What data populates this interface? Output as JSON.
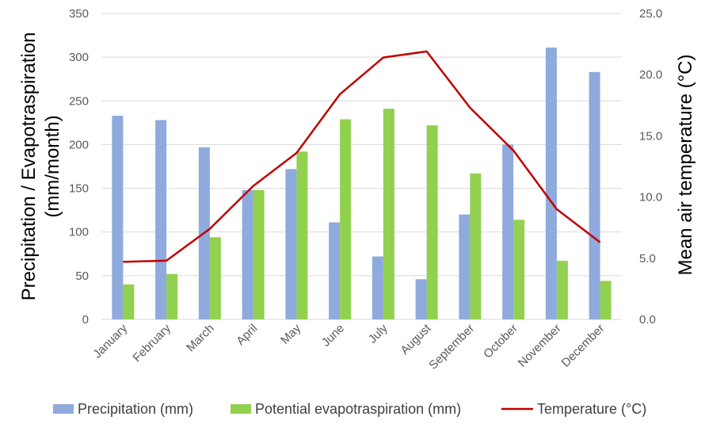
{
  "chart_data": {
    "type": "bar",
    "categories": [
      "January",
      "February",
      "March",
      "April",
      "May",
      "June",
      "July",
      "August",
      "September",
      "October",
      "November",
      "December"
    ],
    "series": [
      {
        "name": "Precipitation (mm)",
        "kind": "bar",
        "axis": "left",
        "color": "#8faadc",
        "values": [
          233,
          228,
          197,
          148,
          172,
          111,
          72,
          46,
          120,
          200,
          311,
          283
        ]
      },
      {
        "name": "Potential evapotraspiration (mm)",
        "kind": "bar",
        "axis": "left",
        "color": "#92d050",
        "values": [
          40,
          52,
          94,
          148,
          192,
          229,
          241,
          222,
          167,
          114,
          67,
          44
        ]
      },
      {
        "name": "Temperature (°C)",
        "kind": "line",
        "axis": "right",
        "color": "#c00000",
        "values": [
          4.7,
          4.8,
          7.4,
          10.9,
          13.6,
          18.4,
          21.4,
          21.9,
          17.3,
          13.8,
          9.0,
          6.3
        ]
      }
    ],
    "ylabel": "Precipitation / Evapotraspiration (mm/month)",
    "ylabel_lines": [
      "Precipitation / Evapotraspiration",
      "(mm/month)"
    ],
    "y2label": "Mean air temperature (°C)",
    "ylim": [
      0,
      350
    ],
    "y2lim": [
      0,
      25
    ],
    "yticks": [
      "0",
      "50",
      "100",
      "150",
      "200",
      "250",
      "300",
      "350"
    ],
    "y2ticks": [
      "0.0",
      "5.0",
      "10.0",
      "15.0",
      "20.0",
      "25.0"
    ],
    "grid": true,
    "legend_position": "bottom"
  }
}
